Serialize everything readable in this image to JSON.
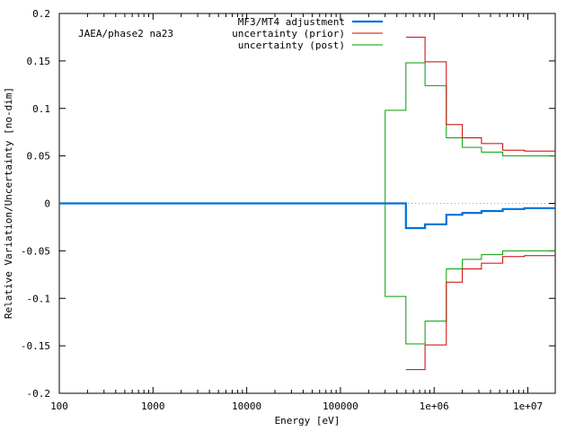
{
  "chart_data": {
    "type": "line",
    "title": "",
    "annotation": "JAEA/phase2 na23",
    "xlabel": "Energy [eV]",
    "ylabel": "Relative Variation/Uncertainty [no-dim]",
    "x_scale": "log",
    "xlim": [
      100,
      19600000
    ],
    "ylim": [
      -0.2,
      0.2
    ],
    "x_ticks": [
      {
        "value": 100,
        "label": "100"
      },
      {
        "value": 1000,
        "label": "1000"
      },
      {
        "value": 10000,
        "label": "10000"
      },
      {
        "value": 100000,
        "label": "100000"
      },
      {
        "value": 1000000,
        "label": "1e+06"
      },
      {
        "value": 10000000,
        "label": "1e+07"
      }
    ],
    "y_ticks": [
      {
        "value": 0.2,
        "label": "0.2"
      },
      {
        "value": 0.15,
        "label": "0.15"
      },
      {
        "value": 0.1,
        "label": "0.1"
      },
      {
        "value": 0.05,
        "label": "0.05"
      },
      {
        "value": 0,
        "label": "0"
      },
      {
        "value": -0.05,
        "label": "-0.05"
      },
      {
        "value": -0.1,
        "label": "-0.1"
      },
      {
        "value": -0.15,
        "label": "-0.15"
      },
      {
        "value": -0.2,
        "label": "-0.2"
      }
    ],
    "grid": false,
    "legend_position": "top-center",
    "zero_line": {
      "style": "dotted",
      "color": "#a0a0a0"
    },
    "series": [
      {
        "name": "MF3/MT4 adjustment",
        "color": "#0072d6",
        "style": "step",
        "mirror": false,
        "bins": [
          [
            100,
            500000,
            0
          ],
          [
            500000,
            800000,
            -0.026
          ],
          [
            800000,
            1350000,
            -0.022
          ],
          [
            1350000,
            2000000,
            -0.012
          ],
          [
            2000000,
            3200000,
            -0.01
          ],
          [
            3200000,
            5400000,
            -0.008
          ],
          [
            5400000,
            9200000,
            -0.006
          ],
          [
            9200000,
            19600000,
            -0.005
          ]
        ]
      },
      {
        "name": "uncertainty (prior)",
        "color": "#cc0000",
        "style": "step",
        "mirror": true,
        "bins": [
          [
            500000,
            800000,
            0.175
          ],
          [
            800000,
            1350000,
            0.149
          ],
          [
            1350000,
            2000000,
            0.083
          ],
          [
            2000000,
            3200000,
            0.069
          ],
          [
            3200000,
            5400000,
            0.063
          ],
          [
            5400000,
            9200000,
            0.056
          ],
          [
            9200000,
            19600000,
            0.055
          ]
        ]
      },
      {
        "name": "uncertainty (post)",
        "color": "#00a000",
        "style": "step",
        "mirror": true,
        "bins": [
          [
            100,
            300000,
            0
          ],
          [
            300000,
            500000,
            0.098
          ],
          [
            500000,
            800000,
            0.148
          ],
          [
            800000,
            1350000,
            0.124
          ],
          [
            1350000,
            2000000,
            0.069
          ],
          [
            2000000,
            3200000,
            0.059
          ],
          [
            3200000,
            5400000,
            0.054
          ],
          [
            5400000,
            9200000,
            0.05
          ],
          [
            9200000,
            19600000,
            0.05
          ]
        ]
      }
    ]
  }
}
